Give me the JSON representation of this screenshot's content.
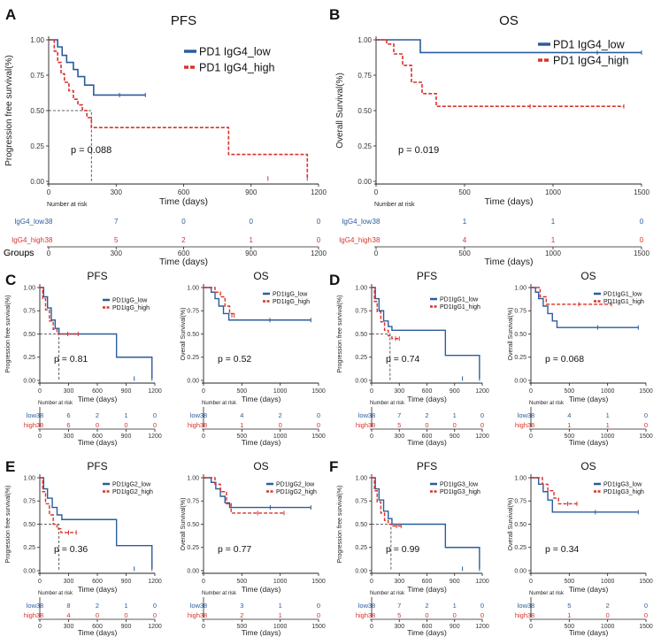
{
  "colors": {
    "low": "#2b5d9c",
    "high": "#d9332c",
    "axis": "#222222",
    "ref": "#333333"
  },
  "risk_header": "Number at risk",
  "groups_label": "Groups",
  "risk_rows": [
    "low",
    "high"
  ],
  "panel_letters": [
    "A",
    "B",
    "C",
    "D",
    "E",
    "F"
  ],
  "chart_data": [
    {
      "id": "A",
      "type": "line",
      "title": "PFS",
      "xlabel": "Time (days)",
      "ylabel": "Progression free survival(%)",
      "xlim": [
        0,
        1200
      ],
      "ylim": [
        0,
        1
      ],
      "xticks": [
        "0",
        "300",
        "600",
        "900",
        "1200"
      ],
      "yticks": [
        "0.00",
        "0.25",
        "0.50",
        "0.75",
        "1.00"
      ],
      "pvalue": "p = 0.088",
      "legend": [
        "PD1 IgG4_low",
        "PD1 IgG4_high"
      ],
      "risk_labels": [
        "IgG4_low",
        "IgG4_high"
      ],
      "risk_low": [
        "38",
        "7",
        "0",
        "0",
        "0"
      ],
      "risk_high": [
        "38",
        "5",
        "2",
        "1",
        "0"
      ],
      "median_x": 190,
      "series": [
        {
          "group": "low",
          "x": [
            0,
            40,
            60,
            80,
            110,
            130,
            160,
            200,
            430
          ],
          "y": [
            1,
            0.95,
            0.89,
            0.84,
            0.79,
            0.74,
            0.68,
            0.61,
            0.61
          ]
        },
        {
          "group": "high",
          "x": [
            0,
            25,
            40,
            55,
            70,
            90,
            110,
            130,
            150,
            170,
            190,
            800,
            1150
          ],
          "y": [
            1,
            0.92,
            0.84,
            0.76,
            0.7,
            0.64,
            0.58,
            0.54,
            0.5,
            0.45,
            0.38,
            0.19,
            0.02
          ]
        }
      ]
    },
    {
      "id": "B",
      "type": "line",
      "title": "OS",
      "xlabel": "Time (days)",
      "ylabel": "Overall Survival(%)",
      "xlim": [
        0,
        1500
      ],
      "ylim": [
        0,
        1
      ],
      "xticks": [
        "0",
        "500",
        "1000",
        "1500"
      ],
      "yticks": [
        "0.00",
        "0.25",
        "0.50",
        "0.75",
        "1.00"
      ],
      "pvalue": "p = 0.019",
      "legend": [
        "PD1 IgG4_low",
        "PD1 IgG4_high"
      ],
      "risk_labels": [
        "IgG4_low",
        "IgG4_high"
      ],
      "risk_low": [
        "38",
        "1",
        "1",
        "0"
      ],
      "risk_high": [
        "38",
        "4",
        "1",
        "0"
      ],
      "median_x": null,
      "series": [
        {
          "group": "low",
          "x": [
            0,
            250,
            1000,
            1500
          ],
          "y": [
            1,
            0.91,
            0.91,
            0.91
          ]
        },
        {
          "group": "high",
          "x": [
            0,
            60,
            100,
            150,
            200,
            260,
            340,
            1400
          ],
          "y": [
            1,
            0.97,
            0.9,
            0.82,
            0.7,
            0.62,
            0.53,
            0.53
          ]
        }
      ]
    },
    {
      "id": "C1",
      "type": "line",
      "title": "PFS",
      "xlabel": "Time (days)",
      "ylabel": "Progression free survival(%)",
      "xlim": [
        0,
        1200
      ],
      "ylim": [
        0,
        1
      ],
      "xticks": [
        "0",
        "300",
        "600",
        "900",
        "1200"
      ],
      "yticks": [
        "0.00",
        "0.25",
        "0.50",
        "0.75",
        "1.00"
      ],
      "pvalue": "p = 0.81",
      "legend": [
        "PD1IgG_low",
        "PD1IgG_high"
      ],
      "risk_labels": [
        "low",
        "high"
      ],
      "risk_low": [
        "38",
        "6",
        "2",
        "1",
        "0"
      ],
      "risk_high": [
        "38",
        "6",
        "0",
        "0",
        "0"
      ],
      "median_x": 200,
      "series": [
        {
          "group": "low",
          "x": [
            0,
            40,
            80,
            120,
            160,
            200,
            800,
            1170
          ],
          "y": [
            1,
            0.9,
            0.78,
            0.65,
            0.56,
            0.5,
            0.25,
            0.02
          ]
        },
        {
          "group": "high",
          "x": [
            0,
            30,
            60,
            100,
            140,
            180,
            400
          ],
          "y": [
            1,
            0.88,
            0.76,
            0.64,
            0.55,
            0.5,
            0.5
          ]
        }
      ]
    },
    {
      "id": "C2",
      "type": "line",
      "title": "OS",
      "xlabel": "Time (days)",
      "ylabel": "Overall Survival(%)",
      "xlim": [
        0,
        1500
      ],
      "ylim": [
        0,
        1
      ],
      "xticks": [
        "0",
        "500",
        "1000",
        "1500"
      ],
      "yticks": [
        "0.00",
        "0.25",
        "0.50",
        "0.75",
        "1.00"
      ],
      "pvalue": "p = 0.52",
      "legend": [
        "PD1IgG_low",
        "PD1IgG_high"
      ],
      "risk_labels": [
        "low",
        "high"
      ],
      "risk_low": [
        "38",
        "4",
        "2",
        "0"
      ],
      "risk_high": [
        "38",
        "1",
        "0",
        "0"
      ],
      "median_x": null,
      "series": [
        {
          "group": "low",
          "x": [
            0,
            100,
            150,
            200,
            260,
            330,
            1400
          ],
          "y": [
            1,
            0.95,
            0.88,
            0.8,
            0.72,
            0.65,
            0.65
          ]
        },
        {
          "group": "high",
          "x": [
            0,
            150,
            220,
            280,
            340,
            400
          ],
          "y": [
            1,
            0.95,
            0.9,
            0.8,
            0.72,
            0.7
          ]
        }
      ]
    },
    {
      "id": "D1",
      "type": "line",
      "title": "PFS",
      "xlabel": "Time (days)",
      "ylabel": "Progression free survival(%)",
      "xlim": [
        0,
        1200
      ],
      "ylim": [
        0,
        1
      ],
      "xticks": [
        "0",
        "300",
        "600",
        "900",
        "1200"
      ],
      "yticks": [
        "0.00",
        "0.25",
        "0.50",
        "0.75",
        "1.00"
      ],
      "pvalue": "p = 0.74",
      "legend": [
        "PD1IgG1_low",
        "PD1IgG1_high"
      ],
      "risk_labels": [
        "low",
        "high"
      ],
      "risk_low": [
        "38",
        "7",
        "2",
        "1",
        "0"
      ],
      "risk_high": [
        "38",
        "5",
        "0",
        "0",
        "0"
      ],
      "median_x": 200,
      "series": [
        {
          "group": "low",
          "x": [
            0,
            40,
            80,
            130,
            180,
            220,
            800,
            1170
          ],
          "y": [
            1,
            0.88,
            0.75,
            0.64,
            0.58,
            0.54,
            0.27,
            0.02
          ]
        },
        {
          "group": "high",
          "x": [
            0,
            30,
            60,
            100,
            140,
            180,
            220,
            300
          ],
          "y": [
            1,
            0.85,
            0.74,
            0.63,
            0.54,
            0.48,
            0.45,
            0.45
          ]
        }
      ]
    },
    {
      "id": "D2",
      "type": "line",
      "title": "OS",
      "xlabel": "Time (days)",
      "ylabel": "Overall Survival(%)",
      "xlim": [
        0,
        1500
      ],
      "ylim": [
        0,
        1
      ],
      "xticks": [
        "0",
        "500",
        "1000",
        "1500"
      ],
      "yticks": [
        "0.00",
        "0.25",
        "0.50",
        "0.75",
        "1.00"
      ],
      "pvalue": "p = 0.068",
      "legend": [
        "PD1IgG1_low",
        "PD1IgG1_high"
      ],
      "risk_labels": [
        "low",
        "high"
      ],
      "risk_low": [
        "38",
        "4",
        "1",
        "0"
      ],
      "risk_high": [
        "38",
        "1",
        "1",
        "0"
      ],
      "median_x": null,
      "series": [
        {
          "group": "low",
          "x": [
            0,
            60,
            100,
            160,
            220,
            280,
            340,
            1400
          ],
          "y": [
            1,
            0.95,
            0.88,
            0.8,
            0.72,
            0.64,
            0.57,
            0.57
          ]
        },
        {
          "group": "high",
          "x": [
            0,
            120,
            200,
            1050
          ],
          "y": [
            1,
            0.9,
            0.82,
            0.82
          ]
        }
      ]
    },
    {
      "id": "E1",
      "type": "line",
      "title": "PFS",
      "xlabel": "Time (days)",
      "ylabel": "Progression free survival(%)",
      "xlim": [
        0,
        1200
      ],
      "ylim": [
        0,
        1
      ],
      "xticks": [
        "0",
        "300",
        "600",
        "900",
        "1200"
      ],
      "yticks": [
        "0.00",
        "0.25",
        "0.50",
        "0.75",
        "1.00"
      ],
      "pvalue": "p = 0.36",
      "legend": [
        "PD1IgG2_low",
        "PD1IgG2_high"
      ],
      "risk_labels": [
        "low",
        "high"
      ],
      "risk_low": [
        "38",
        "8",
        "2",
        "1",
        "0"
      ],
      "risk_high": [
        "38",
        "4",
        "0",
        "0",
        "0"
      ],
      "median_x": 200,
      "series": [
        {
          "group": "low",
          "x": [
            0,
            40,
            80,
            130,
            180,
            230,
            800,
            1170
          ],
          "y": [
            1,
            0.88,
            0.78,
            0.68,
            0.6,
            0.55,
            0.27,
            0.02
          ]
        },
        {
          "group": "high",
          "x": [
            0,
            30,
            60,
            100,
            140,
            180,
            220,
            380
          ],
          "y": [
            1,
            0.85,
            0.72,
            0.6,
            0.5,
            0.45,
            0.41,
            0.41
          ]
        }
      ]
    },
    {
      "id": "E2",
      "type": "line",
      "title": "OS",
      "xlabel": "Time (days)",
      "ylabel": "Overall Survival(%)",
      "xlim": [
        0,
        1500
      ],
      "ylim": [
        0,
        1
      ],
      "xticks": [
        "0",
        "500",
        "1000",
        "1500"
      ],
      "yticks": [
        "0.00",
        "0.25",
        "0.50",
        "0.75",
        "1.00"
      ],
      "pvalue": "p = 0.77",
      "legend": [
        "PD1IgG2_low",
        "PD1IgG2_high"
      ],
      "risk_labels": [
        "low",
        "high"
      ],
      "risk_low": [
        "38",
        "3",
        "1",
        "0"
      ],
      "risk_high": [
        "38",
        "2",
        "1",
        "0"
      ],
      "median_x": null,
      "series": [
        {
          "group": "low",
          "x": [
            0,
            100,
            160,
            220,
            280,
            340,
            1400
          ],
          "y": [
            1,
            0.95,
            0.88,
            0.8,
            0.73,
            0.68,
            0.68
          ]
        },
        {
          "group": "high",
          "x": [
            0,
            150,
            220,
            300,
            360,
            1050
          ],
          "y": [
            1,
            0.93,
            0.85,
            0.72,
            0.62,
            0.62
          ]
        }
      ]
    },
    {
      "id": "F1",
      "type": "line",
      "title": "PFS",
      "xlabel": "Time (days)",
      "ylabel": "Progression free survival(%)",
      "xlim": [
        0,
        1200
      ],
      "ylim": [
        0,
        1
      ],
      "xticks": [
        "0",
        "300",
        "600",
        "900",
        "1200"
      ],
      "yticks": [
        "0.00",
        "0.25",
        "0.50",
        "0.75",
        "1.00"
      ],
      "pvalue": "p = 0.99",
      "legend": [
        "PD1IgG3_low",
        "PD1IgG3_high"
      ],
      "risk_labels": [
        "low",
        "high"
      ],
      "risk_low": [
        "38",
        "7",
        "2",
        "1",
        "0"
      ],
      "risk_high": [
        "38",
        "5",
        "0",
        "0",
        "0"
      ],
      "median_x": 210,
      "series": [
        {
          "group": "low",
          "x": [
            0,
            40,
            80,
            130,
            180,
            220,
            800,
            1170
          ],
          "y": [
            1,
            0.88,
            0.76,
            0.64,
            0.56,
            0.5,
            0.25,
            0.02
          ]
        },
        {
          "group": "high",
          "x": [
            0,
            30,
            60,
            100,
            140,
            180,
            220,
            320
          ],
          "y": [
            1,
            0.86,
            0.74,
            0.62,
            0.54,
            0.5,
            0.48,
            0.48
          ]
        }
      ]
    },
    {
      "id": "F2",
      "type": "line",
      "title": "OS",
      "xlabel": "Time (days)",
      "ylabel": "Overall Survival(%)",
      "xlim": [
        0,
        1500
      ],
      "ylim": [
        0,
        1
      ],
      "xticks": [
        "0",
        "500",
        "1000",
        "1500"
      ],
      "yticks": [
        "0.00",
        "0.25",
        "0.50",
        "0.75",
        "1.00"
      ],
      "pvalue": "p = 0.34",
      "legend": [
        "PD1IgG3_low",
        "PD1IgG3_high"
      ],
      "risk_labels": [
        "low",
        "high"
      ],
      "risk_low": [
        "38",
        "5",
        "2",
        "0"
      ],
      "risk_high": [
        "38",
        "1",
        "0",
        "0"
      ],
      "median_x": null,
      "series": [
        {
          "group": "low",
          "x": [
            0,
            100,
            160,
            220,
            280,
            1400
          ],
          "y": [
            1,
            0.93,
            0.85,
            0.76,
            0.63,
            0.63
          ]
        },
        {
          "group": "high",
          "x": [
            0,
            150,
            220,
            300,
            360,
            600
          ],
          "y": [
            1,
            0.93,
            0.86,
            0.78,
            0.72,
            0.72
          ]
        }
      ]
    }
  ]
}
